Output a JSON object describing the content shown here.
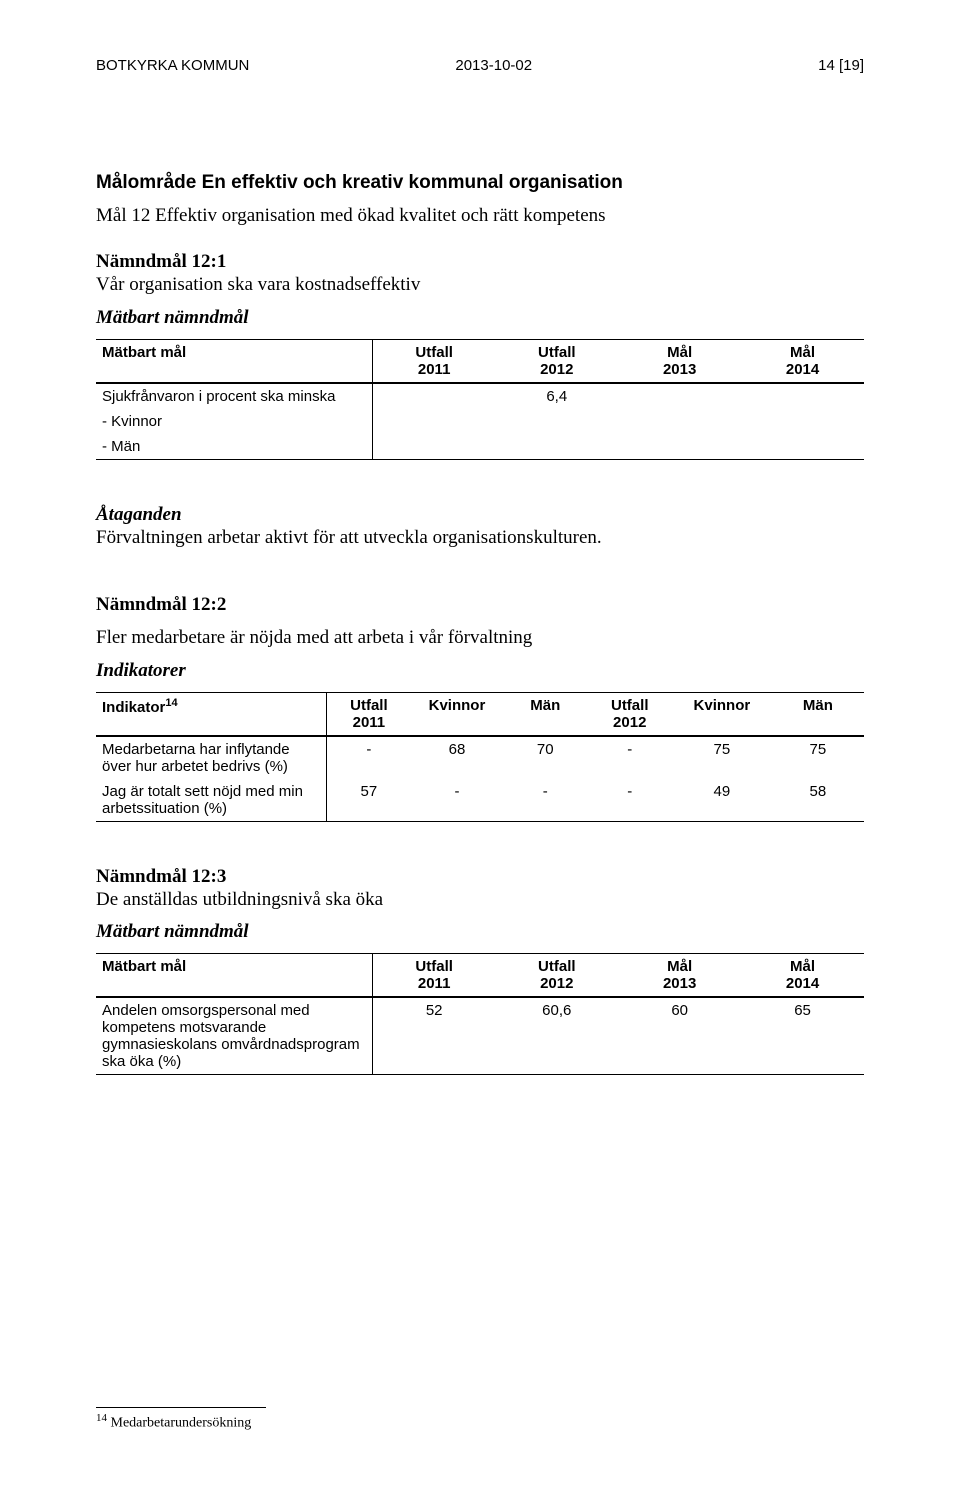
{
  "header": {
    "org": "BOTKYRKA KOMMUN",
    "date": "2013-10-02",
    "page": "14 [19]"
  },
  "section": {
    "malomrade_title": "Målområde En effektiv och kreativ kommunal organisation",
    "mal12_line": "Mål 12 Effektiv organisation med ökad kvalitet och rätt kompetens"
  },
  "n121": {
    "heading": "Nämndmål 12:1",
    "desc": "Vår organisation ska vara kostnadseffektiv",
    "sub_italic": "Mätbart nämndmål"
  },
  "table1": {
    "columns": [
      [
        "Mätbart mål",
        ""
      ],
      [
        "Utfall",
        "2011"
      ],
      [
        "Utfall",
        "2012"
      ],
      [
        "Mål",
        "2013"
      ],
      [
        "Mål",
        "2014"
      ]
    ],
    "rows": [
      {
        "label": "Sjukfrånvaron i procent ska minska",
        "v": [
          "",
          "6,4",
          "",
          ""
        ]
      },
      {
        "label": "- Kvinnor",
        "v": [
          "",
          "",
          "",
          ""
        ]
      },
      {
        "label": "- Män",
        "v": [
          "",
          "",
          "",
          ""
        ]
      }
    ]
  },
  "ataganden": {
    "heading": "Åtaganden",
    "text": "Förvaltningen arbetar aktivt för att utveckla organisationskulturen."
  },
  "n122": {
    "heading": "Nämndmål 12:2",
    "desc": "Fler medarbetare är nöjda med att arbeta i vår förvaltning",
    "sub_italic": "Indikatorer"
  },
  "table2": {
    "indikator_label": "Indikator",
    "indikator_sup": "14",
    "columns": [
      [
        "Utfall",
        "2011"
      ],
      [
        "Kvinnor",
        ""
      ],
      [
        "Män",
        ""
      ],
      [
        "Utfall",
        "2012"
      ],
      [
        "Kvinnor",
        ""
      ],
      [
        "Män",
        ""
      ]
    ],
    "rows": [
      {
        "label": "Medarbetarna har inflytande över hur arbetet bedrivs (%)",
        "v": [
          "-",
          "68",
          "70",
          "-",
          "75",
          "75"
        ]
      },
      {
        "label": "Jag är totalt sett nöjd med min arbetssituation (%)",
        "v": [
          "57",
          "-",
          "-",
          "-",
          "49",
          "58"
        ]
      }
    ]
  },
  "n123": {
    "heading": "Nämndmål 12:3",
    "desc": "De anställdas utbildningsnivå ska öka",
    "sub_italic": "Mätbart nämndmål"
  },
  "table3": {
    "columns": [
      [
        "Mätbart mål",
        ""
      ],
      [
        "Utfall",
        "2011"
      ],
      [
        "Utfall",
        "2012"
      ],
      [
        "Mål",
        "2013"
      ],
      [
        "Mål",
        "2014"
      ]
    ],
    "rows": [
      {
        "label": "Andelen omsorgspersonal med kompetens motsvarande gymnasieskolans omvårdnadsprogram ska öka (%)",
        "v": [
          "52",
          "60,6",
          "60",
          "65"
        ]
      }
    ]
  },
  "footnote": {
    "num": "14",
    "text": " Medarbetarundersökning"
  }
}
